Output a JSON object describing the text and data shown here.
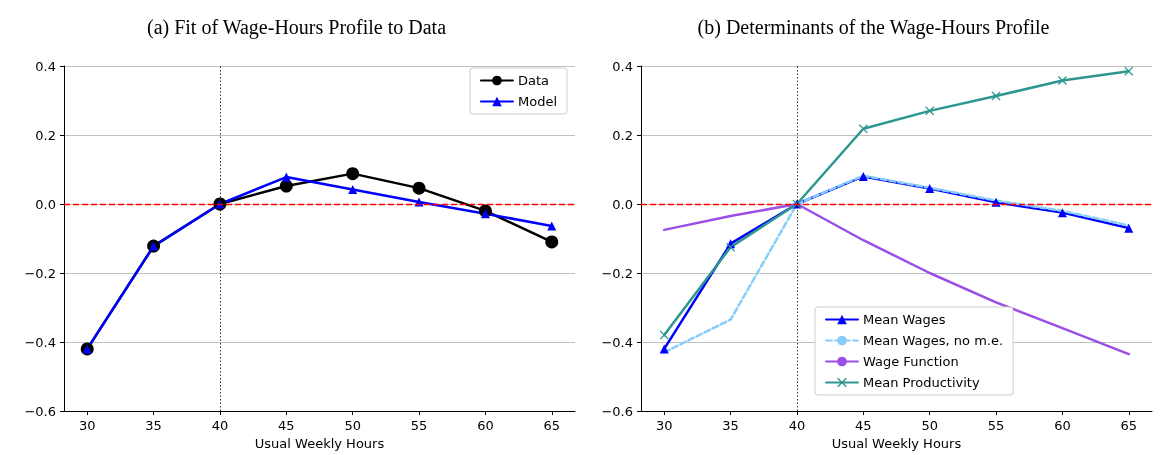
{
  "chart_data": [
    {
      "type": "line",
      "title": "(a) Fit of Wage-Hours Profile to Data",
      "xlabel": "Usual Weekly Hours",
      "x": [
        30,
        35,
        40,
        45,
        50,
        55,
        60,
        65
      ],
      "xlim": [
        28.25,
        66.75
      ],
      "xticks": [
        30,
        35,
        40,
        45,
        50,
        55,
        60,
        65
      ],
      "ylim": [
        -0.6,
        0.4
      ],
      "yticks": [
        {
          "value": -0.6,
          "label": "−0.6"
        },
        {
          "value": -0.4,
          "label": "−0.4"
        },
        {
          "value": -0.2,
          "label": "−0.2"
        },
        {
          "value": 0,
          "label": "0.0"
        },
        {
          "value": 0.2,
          "label": "0.2"
        },
        {
          "value": 0.4,
          "label": "0.4"
        }
      ],
      "grid": "y",
      "legend": "top right",
      "series": [
        {
          "name": "Data",
          "color": "#000000",
          "marker": "circle",
          "line_style": "solid",
          "values": [
            -0.42,
            -0.122,
            0,
            0.052,
            0.088,
            0.046,
            -0.02,
            -0.11
          ]
        },
        {
          "name": "Model",
          "color": "#0000ff",
          "marker": "triangle",
          "line_style": "solid",
          "values": [
            -0.42,
            -0.122,
            0,
            0.078,
            0.042,
            0.006,
            -0.028,
            -0.064
          ]
        }
      ],
      "ref_lines": [
        {
          "axis": "y",
          "value": 0,
          "color": "#ff0000",
          "line_style": "dashed"
        },
        {
          "axis": "x",
          "value": 40,
          "color": "#000000",
          "line_style": "dotted"
        }
      ]
    },
    {
      "type": "line",
      "title": "(b) Determinants of the Wage-Hours Profile",
      "xlabel": "Usual Weekly Hours",
      "x": [
        30,
        35,
        40,
        45,
        50,
        55,
        60,
        65
      ],
      "xlim": [
        28.25,
        66.75
      ],
      "xticks": [
        30,
        35,
        40,
        45,
        50,
        55,
        60,
        65
      ],
      "ylim": [
        -0.6,
        0.4
      ],
      "yticks": [
        {
          "value": -0.6,
          "label": "−0.6"
        },
        {
          "value": -0.4,
          "label": "−0.4"
        },
        {
          "value": -0.2,
          "label": "−0.2"
        },
        {
          "value": 0,
          "label": "0.0"
        },
        {
          "value": 0.2,
          "label": "0.2"
        },
        {
          "value": 0.4,
          "label": "0.4"
        }
      ],
      "grid": "y",
      "legend": "bottom",
      "series": [
        {
          "name": "Mean Wages",
          "color": "#0000ff",
          "marker": "triangle",
          "line_style": "solid",
          "values": [
            -0.42,
            -0.115,
            0,
            0.08,
            0.045,
            0.005,
            -0.025,
            -0.07
          ]
        },
        {
          "name": "Mean Wages, no m.e.",
          "color": "#87cefa",
          "marker": "none",
          "line_style": "dashed",
          "values": [
            -0.43,
            -0.335,
            0,
            0.082,
            0.047,
            0.01,
            -0.02,
            -0.062
          ]
        },
        {
          "name": "Wage Function",
          "color": "#9b4fe6",
          "marker": "none",
          "line_style": "solid",
          "values": [
            -0.075,
            -0.035,
            0,
            -0.105,
            -0.2,
            -0.285,
            -0.36,
            -0.435
          ]
        },
        {
          "name": "Mean Productivity",
          "color": "#2e9690",
          "marker": "cross",
          "line_style": "solid",
          "values": [
            -0.38,
            -0.125,
            0,
            0.218,
            0.27,
            0.313,
            0.358,
            0.385
          ]
        }
      ],
      "ref_lines": [
        {
          "axis": "y",
          "value": 0,
          "color": "#ff0000",
          "line_style": "dashed"
        },
        {
          "axis": "x",
          "value": 40,
          "color": "#000000",
          "line_style": "dotted"
        }
      ]
    }
  ]
}
